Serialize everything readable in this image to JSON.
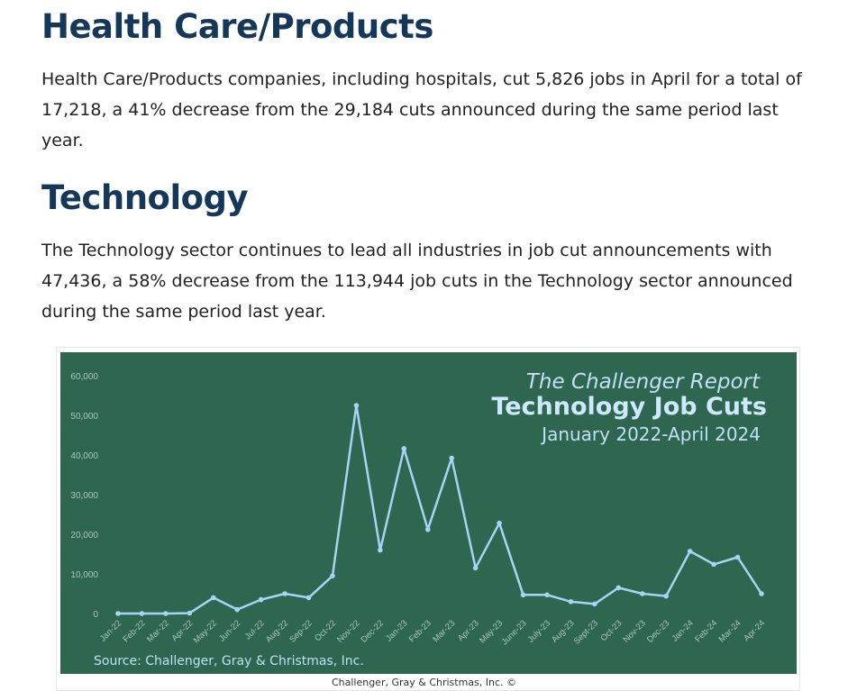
{
  "sections": [
    {
      "heading": "Health Care/Products",
      "body": "Health Care/Products companies, including hospitals, cut 5,826 jobs in April for a total of 17,218, a 41% decrease from the 29,184 cuts announced during the same period last year."
    },
    {
      "heading": "Technology",
      "body": "The Technology sector continues to lead all industries in job cut announcements with 47,436, a 58% decrease from the 113,944 job cuts in the Technology sector announced during the same period last year."
    }
  ],
  "chart_data": {
    "type": "line",
    "report_name": "The Challenger Report",
    "title": "Technology Job Cuts",
    "subtitle": "January 2022-April 2024",
    "source": "Source: Challenger, Gray & Christmas, Inc.",
    "xlabel": "",
    "ylabel": "",
    "ylim": [
      0,
      60000
    ],
    "yticks": [
      "0",
      "10,000",
      "20,000",
      "30,000",
      "40,000",
      "50,000",
      "60,000"
    ],
    "grid": false,
    "categories": [
      "Jan-22",
      "Feb-22",
      "Mar-22",
      "Apr-22",
      "May-22",
      "Jun-22",
      "Jul-22",
      "Aug-22",
      "Sep-22",
      "Oct-22",
      "Nov-22",
      "Dec-22",
      "Jan-23",
      "Feb-23",
      "Mar-23",
      "Apr-23",
      "May-23",
      "June-23",
      "July-23",
      "Aug-23",
      "Sept-23",
      "Oct-23",
      "Nov-23",
      "Dec-23",
      "Jan-24",
      "Feb-24",
      "Mar-24",
      "Apr-24"
    ],
    "values": [
      0,
      0,
      0,
      100,
      4000,
      1000,
      3500,
      5000,
      4000,
      9500,
      52500,
      16000,
      41600,
      21200,
      39200,
      11500,
      22800,
      4700,
      4700,
      3000,
      2400,
      6500,
      5000,
      4400,
      15700,
      12400,
      14200,
      5000
    ],
    "line_color": "#a9d3f5"
  },
  "copyright": "Challenger, Gray & Christmas, Inc. ©"
}
